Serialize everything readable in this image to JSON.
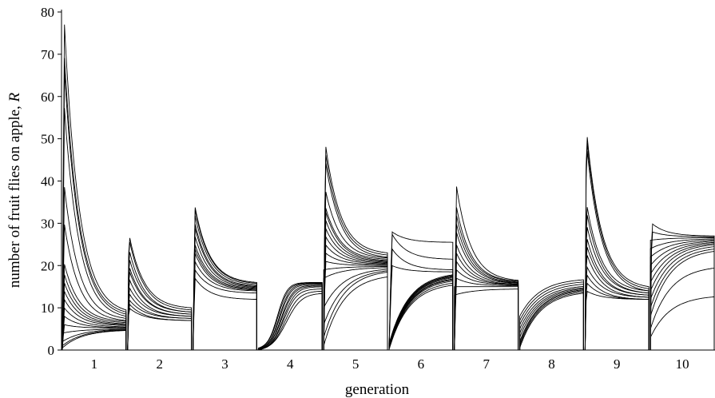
{
  "chart_data": {
    "type": "line",
    "xlabel": "generation",
    "ylabel_prefix": "number of fruit flies on apple, ",
    "ylabel_var": "R",
    "ylim": [
      0,
      80
    ],
    "yticks": [
      0,
      10,
      20,
      30,
      40,
      50,
      60,
      70,
      80
    ],
    "categories": [
      "1",
      "2",
      "3",
      "4",
      "5",
      "6",
      "7",
      "8",
      "9",
      "10"
    ],
    "grid": false,
    "legend": "none",
    "line_color": "#000000",
    "note": "Each generation panel shows many simulated trajectories of R over time within the generation.",
    "generations": [
      {
        "label": "1",
        "start_values": [
          78,
          70,
          67,
          58,
          39,
          30,
          20.5,
          18,
          16,
          14,
          12,
          10,
          8,
          6,
          4,
          2,
          1,
          0.5
        ],
        "end_values": [
          9.5,
          9,
          8.5,
          8,
          7.5,
          7,
          6.8,
          6.5,
          6.2,
          6,
          5.8,
          5.5,
          5.3,
          5.2,
          5,
          5,
          4.9,
          4.8
        ],
        "peak_pos": 0.12
      },
      {
        "label": "2",
        "start_values": [
          27.5,
          26.5,
          24,
          22,
          20,
          19,
          17,
          15,
          13.5,
          12,
          11,
          10
        ],
        "end_values": [
          10,
          9.5,
          9,
          9,
          8.5,
          8.5,
          8,
          8,
          7.5,
          7.5,
          7,
          7
        ],
        "peak_pos": 0.08
      },
      {
        "label": "3",
        "start_values": [
          34,
          33.5,
          32,
          30,
          29,
          27,
          25,
          24,
          23,
          21,
          19,
          17
        ],
        "end_values": [
          16,
          15.8,
          15.5,
          15.2,
          15,
          14.8,
          14.6,
          14.4,
          14.2,
          14,
          13.5,
          12
        ],
        "peak_pos": 0.12
      },
      {
        "label": "4",
        "start_values": [
          0.5,
          0.4,
          0.3,
          0.3,
          0.2,
          0.2,
          0.1,
          0.1,
          0.05,
          0.05
        ],
        "end_values": [
          16,
          15.9,
          15.8,
          15.6,
          15.4,
          15.2,
          15,
          14.5,
          14,
          13.5
        ],
        "growth_rate": [
          6.5,
          6.2,
          6,
          5.8,
          5.5,
          5.3,
          5.1,
          4.9,
          4.6,
          4.2
        ],
        "growth_mid": [
          0.3,
          0.31,
          0.33,
          0.34,
          0.36,
          0.37,
          0.39,
          0.4,
          0.42,
          0.44
        ]
      },
      {
        "label": "5",
        "start_values": [
          49,
          47,
          45,
          38,
          34,
          33,
          31,
          29,
          27,
          25,
          23,
          21,
          19,
          17,
          10,
          6,
          3,
          1
        ],
        "end_values": [
          23,
          22.5,
          22,
          21.8,
          21.5,
          21.2,
          21,
          20.8,
          20.6,
          20.4,
          20.2,
          20,
          19.8,
          19.6,
          19.5,
          19.3,
          19.1,
          18
        ],
        "peak_pos": 0.1
      },
      {
        "label": "6",
        "start_values": [
          28,
          27.5,
          24,
          20,
          1.5,
          1.2,
          1,
          0.8,
          0.6,
          0.5,
          0.4,
          0.3,
          0.2,
          0.1
        ],
        "end_values": [
          25.5,
          21.5,
          19,
          18.5,
          18.5,
          18.3,
          18.2,
          18,
          17.8,
          17.5,
          17.3,
          17,
          16.5,
          16
        ],
        "peak_pos": 0.18
      },
      {
        "label": "7",
        "start_values": [
          39,
          34,
          32,
          30,
          28,
          25,
          23,
          21,
          19,
          17,
          15,
          13
        ],
        "end_values": [
          16.5,
          16.3,
          16.2,
          16,
          15.9,
          15.8,
          15.6,
          15.5,
          15.4,
          15.2,
          15,
          14.5
        ],
        "peak_pos": 0.12
      },
      {
        "label": "8",
        "start_values": [
          8,
          7,
          6,
          5,
          4,
          3,
          2,
          1.5,
          1,
          0.5
        ],
        "end_values": [
          17,
          16.5,
          16,
          15.5,
          15.2,
          15,
          14.8,
          14.6,
          14.3,
          14
        ]
      },
      {
        "label": "9",
        "start_values": [
          52.5,
          51,
          49,
          35,
          33,
          30,
          27,
          25,
          23,
          20,
          18,
          16,
          14
        ],
        "end_values": [
          15,
          14.5,
          14,
          14,
          13.5,
          13.5,
          13,
          13,
          12.5,
          12.5,
          12,
          12,
          12
        ],
        "peak_pos": 0.08
      },
      {
        "label": "10",
        "start_values": [
          30,
          28,
          26,
          24,
          22,
          20,
          18,
          16,
          14,
          12,
          10,
          8,
          5,
          3
        ],
        "end_values": [
          27,
          26.8,
          26.6,
          26.4,
          26.2,
          26,
          25.8,
          25.6,
          25.4,
          25,
          24.5,
          24,
          20,
          13
        ],
        "peak_pos": 0.08
      }
    ]
  }
}
